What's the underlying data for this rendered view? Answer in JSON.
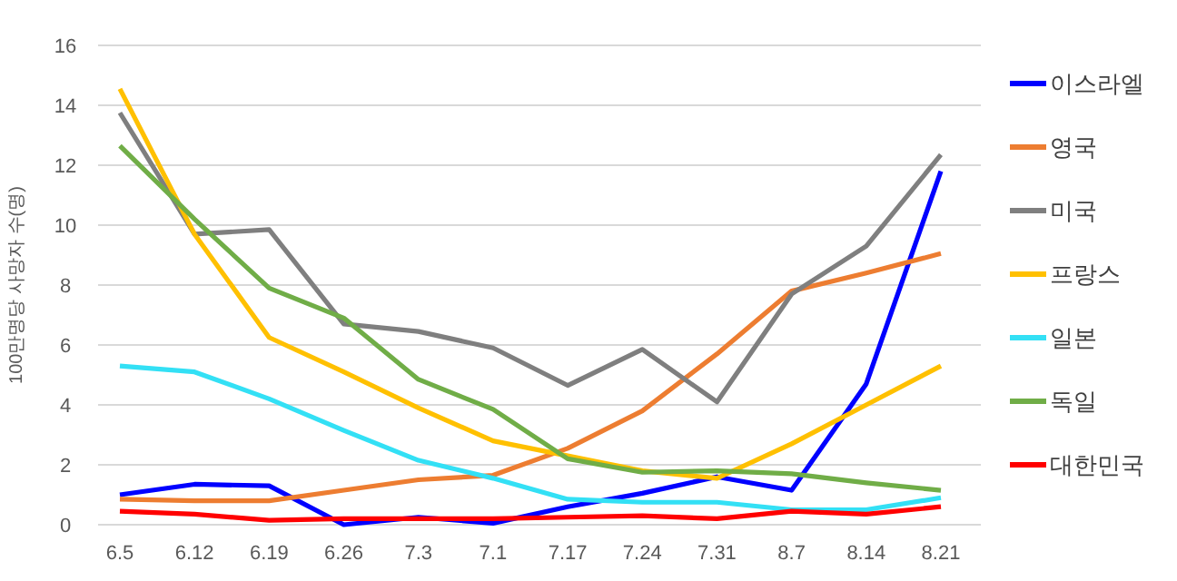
{
  "chart_data": {
    "type": "line",
    "ylabel": "100만명당 사망자 수(명)",
    "categories": [
      "6.5",
      "6.12",
      "6.19",
      "6.26",
      "7.3",
      "7.1",
      "7.17",
      "7.24",
      "7.31",
      "8.7",
      "8.14",
      "8.21"
    ],
    "ylim": [
      0,
      16
    ],
    "yticks": [
      0,
      2,
      4,
      6,
      8,
      10,
      12,
      14,
      16
    ],
    "grid": "y",
    "legend": "right",
    "marker": "none",
    "line_style": "solid",
    "series": [
      {
        "name": "이스라엘",
        "color": "#0000ff",
        "values": [
          1.0,
          1.35,
          1.3,
          0,
          0.25,
          0.05,
          0.6,
          1.05,
          1.6,
          1.15,
          4.7,
          11.8
        ]
      },
      {
        "name": "영국",
        "color": "#ed7d31",
        "values": [
          0.85,
          0.8,
          0.8,
          1.15,
          1.5,
          1.65,
          2.55,
          3.8,
          5.7,
          7.8,
          8.4,
          9.05
        ]
      },
      {
        "name": "미국",
        "color": "#7f7f7f",
        "values": [
          13.75,
          9.7,
          9.85,
          6.7,
          6.45,
          5.9,
          4.65,
          5.85,
          4.1,
          7.7,
          9.3,
          12.35
        ]
      },
      {
        "name": "프랑스",
        "color": "#ffc000",
        "values": [
          14.55,
          9.7,
          6.25,
          5.1,
          3.9,
          2.8,
          2.3,
          1.8,
          1.55,
          2.7,
          4.0,
          5.3
        ]
      },
      {
        "name": "일본",
        "color": "#33e0f5",
        "values": [
          5.3,
          5.1,
          4.2,
          3.15,
          2.15,
          1.55,
          0.85,
          0.75,
          0.75,
          0.5,
          0.5,
          0.9
        ]
      },
      {
        "name": "독일",
        "color": "#70ad47",
        "values": [
          12.65,
          10.2,
          7.9,
          6.9,
          4.85,
          3.85,
          2.2,
          1.75,
          1.8,
          1.7,
          1.4,
          1.15
        ]
      },
      {
        "name": "대한민국",
        "color": "#ff0000",
        "values": [
          0.45,
          0.35,
          0.15,
          0.2,
          0.2,
          0.2,
          0.25,
          0.3,
          0.2,
          0.45,
          0.35,
          0.6
        ]
      }
    ]
  }
}
